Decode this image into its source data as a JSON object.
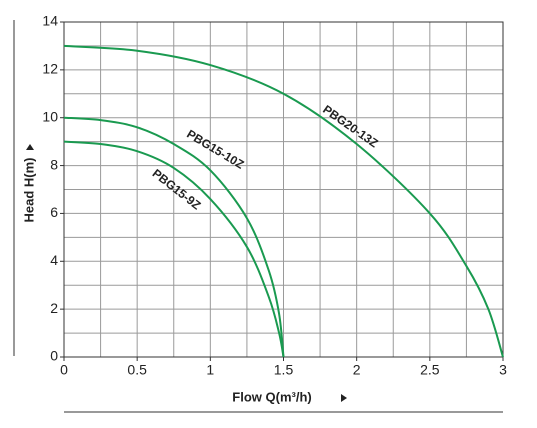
{
  "chart_data": {
    "type": "line",
    "x_label": "Flow  Q(m³/h)",
    "y_label": "Head  H(m)",
    "xlim": [
      0,
      3
    ],
    "ylim": [
      0,
      14
    ],
    "xticks": [
      0,
      0.5,
      1,
      1.5,
      2,
      2.5,
      3
    ],
    "yticks": [
      0,
      2,
      4,
      6,
      8,
      10,
      12,
      14
    ],
    "xgrid": [
      0.25,
      0.5,
      0.75,
      1,
      1.25,
      1.5,
      1.75,
      2,
      2.25,
      2.5,
      2.75
    ],
    "ygrid": [
      1,
      2,
      3,
      4,
      5,
      6,
      7,
      8,
      9,
      10,
      11,
      12,
      13
    ],
    "grid": true,
    "series": [
      {
        "name": "PBG20-13Z",
        "color": "#1a9a50",
        "x": [
          0,
          0.5,
          1,
          1.5,
          2,
          2.5,
          2.75,
          2.9,
          3
        ],
        "values": [
          13,
          12.8,
          12.2,
          11,
          8.9,
          6,
          3.8,
          2,
          0
        ]
      },
      {
        "name": "PBG15-10Z",
        "color": "#1a9a50",
        "x": [
          0,
          0.25,
          0.5,
          0.75,
          1,
          1.25,
          1.4,
          1.47,
          1.5
        ],
        "values": [
          10,
          9.9,
          9.6,
          8.9,
          7.8,
          5.8,
          3.6,
          1.8,
          0
        ]
      },
      {
        "name": "PBG15-9Z",
        "color": "#1a9a50",
        "x": [
          0,
          0.25,
          0.5,
          0.75,
          1,
          1.25,
          1.4,
          1.47,
          1.5
        ],
        "values": [
          9,
          8.9,
          8.6,
          7.9,
          6.6,
          4.6,
          2.5,
          1,
          0
        ]
      }
    ]
  }
}
